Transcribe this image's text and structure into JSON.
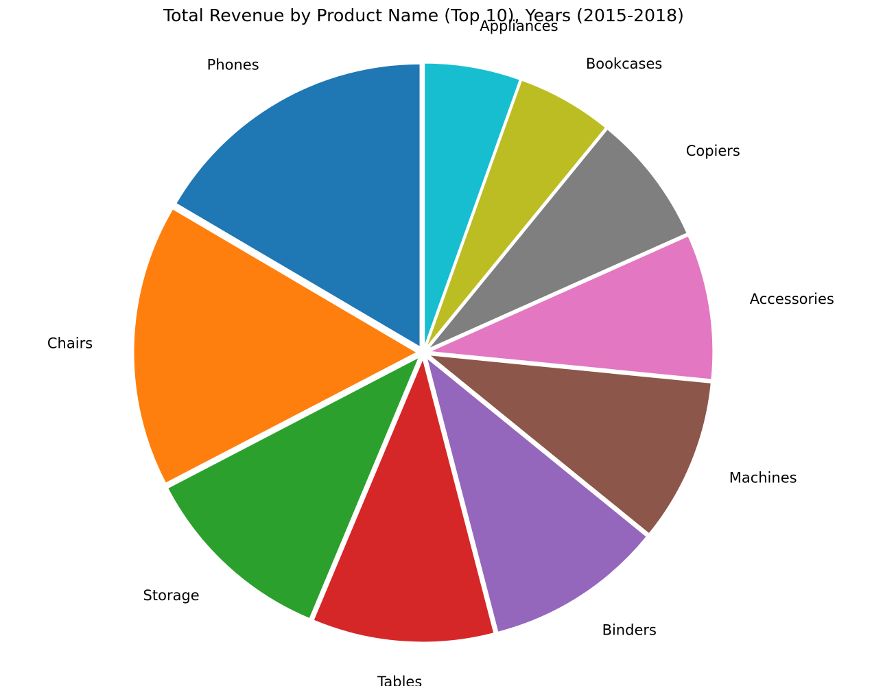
{
  "chart_data": {
    "type": "pie",
    "title": "Total Revenue by Product Name (Top 10), Years (2015-2018)",
    "start_angle_deg": 90,
    "direction": "counterclockwise",
    "exploded": true,
    "slices": [
      {
        "label": "Phones",
        "value": 16.54,
        "color": "#1f77b4"
      },
      {
        "label": "Chairs",
        "value": 16.1,
        "color": "#ff7f0e"
      },
      {
        "label": "Storage",
        "value": 11.05,
        "color": "#2ca02c"
      },
      {
        "label": "Tables",
        "value": 10.35,
        "color": "#d62728"
      },
      {
        "label": "Binders",
        "value": 10.1,
        "color": "#9467bd"
      },
      {
        "label": "Machines",
        "value": 9.29,
        "color": "#8c564b"
      },
      {
        "label": "Accessories",
        "value": 8.26,
        "color": "#e377c2"
      },
      {
        "label": "Copiers",
        "value": 7.42,
        "color": "#7f7f7f"
      },
      {
        "label": "Bookcases",
        "value": 5.43,
        "color": "#bcbd22"
      },
      {
        "label": "Appliances",
        "value": 5.46,
        "color": "#17becf"
      }
    ]
  }
}
